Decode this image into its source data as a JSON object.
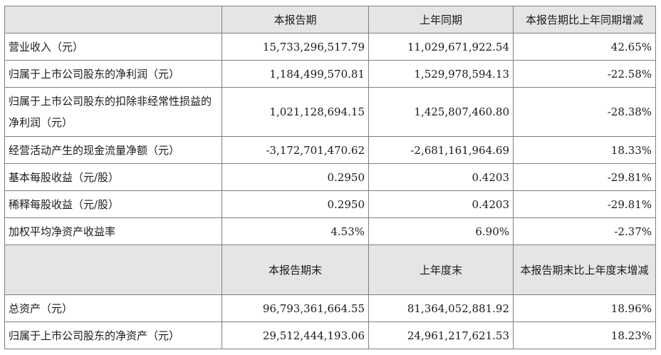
{
  "header1": [
    "本报告期",
    "上年同期",
    "本报告期比上年同期增减"
  ],
  "rows1": [
    {
      "label": "营业收入（元）",
      "current": "15,733,296,517.79",
      "previous": "11,029,671,922.54",
      "change": "42.65%"
    },
    {
      "label": "归属于上市公司股东的净利润（元）",
      "current": "1,184,499,570.81",
      "previous": "1,529,978,594.13",
      "change": "-22.58%"
    },
    {
      "label": "归属于上市公司股东的扣除非经常性损益的净利润（元）",
      "current": "1,021,128,694.15",
      "previous": "1,425,807,460.80",
      "change": "-28.38%"
    },
    {
      "label": "经营活动产生的现金流量净额（元）",
      "current": "-3,172,701,470.62",
      "previous": "-2,681,161,964.69",
      "change": "18.33%"
    },
    {
      "label": "基本每股收益（元/股）",
      "current": "0.2950",
      "previous": "0.4203",
      "change": "-29.81%"
    },
    {
      "label": "稀释每股收益（元/股）",
      "current": "0.2950",
      "previous": "0.4203",
      "change": "-29.81%"
    },
    {
      "label": "加权平均净资产收益率",
      "current": "4.53%",
      "previous": "6.90%",
      "change": "-2.37%"
    }
  ],
  "header2": [
    "本报告期末",
    "上年度末",
    "本报告期末比上年度末增减"
  ],
  "rows2": [
    {
      "label": "总资产（元）",
      "current": "96,793,361,664.55",
      "previous": "81,364,052,881.92",
      "change": "18.96%"
    },
    {
      "label": "归属于上市公司股东的净资产（元）",
      "current": "29,512,444,193.06",
      "previous": "24,961,217,621.53",
      "change": "18.23%"
    }
  ]
}
